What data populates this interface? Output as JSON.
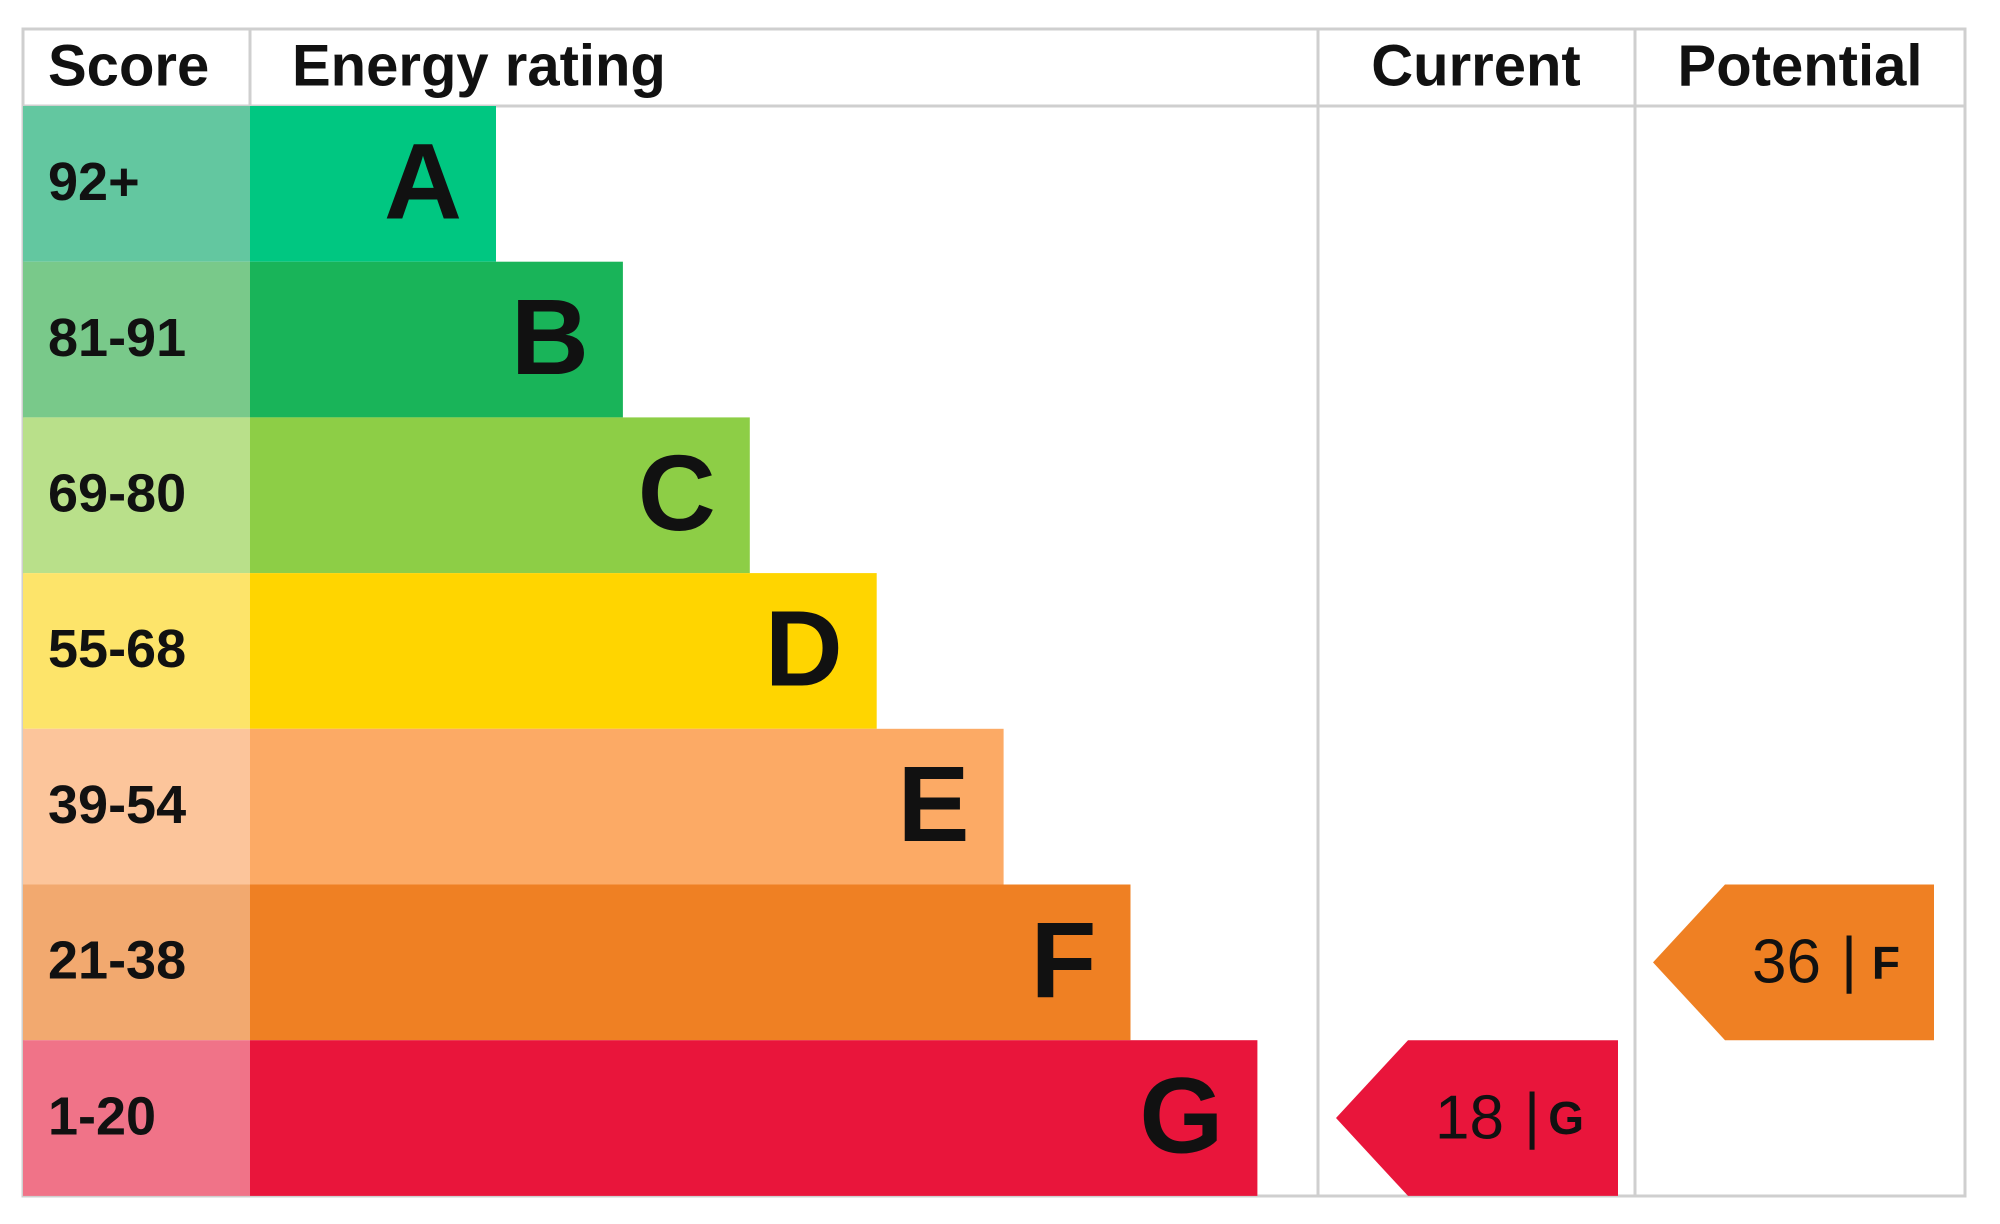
{
  "headers": [
    "Score",
    "Energy rating",
    "Current",
    "Potential"
  ],
  "bands": [
    {
      "score": "92+",
      "rating": "A",
      "color": "#00c781",
      "score_color": "#63c7a0"
    },
    {
      "score": "81-91",
      "rating": "B",
      "color": "#19b459",
      "score_color": "#79c98a"
    },
    {
      "score": "69-80",
      "rating": "C",
      "color": "#8dce46",
      "score_color": "#b9e08a"
    },
    {
      "score": "55-68",
      "rating": "D",
      "color": "#ffd500",
      "score_color": "#fde46a"
    },
    {
      "score": "39-54",
      "rating": "E",
      "color": "#fcaa65",
      "score_color": "#fcc59b"
    },
    {
      "score": "21-38",
      "rating": "F",
      "color": "#ef8023",
      "score_color": "#f2a96f"
    },
    {
      "score": "1-20",
      "rating": "G",
      "color": "#e9153b",
      "score_color": "#f07388"
    }
  ],
  "separator": "|",
  "current": {
    "value": 18,
    "rating": "G"
  },
  "potential": {
    "value": 36,
    "rating": "F"
  }
}
